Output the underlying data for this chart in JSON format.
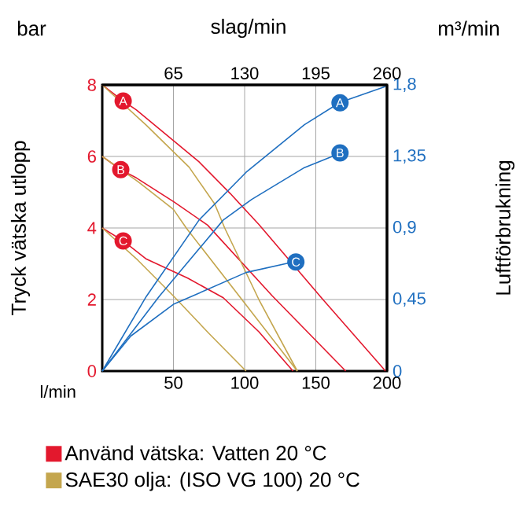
{
  "chart_data": {
    "type": "line",
    "xlabel": "l/min",
    "ylabel": "Tryck vätska utlopp",
    "y2label": "Luftförbrukning",
    "x2label": "slag/min",
    "xlim": [
      0,
      200
    ],
    "xticks": [
      50,
      100,
      150,
      200
    ],
    "ylim": [
      0,
      8
    ],
    "yticks": [
      0,
      2,
      4,
      6,
      8
    ],
    "y2lim": [
      0,
      1.8
    ],
    "y2ticks": [
      0,
      {
        "value": 0.45,
        "label": "0,45"
      },
      {
        "value": 0.9,
        "label": "0,9"
      },
      {
        "value": 1.35,
        "label": "1,35"
      },
      {
        "value": 1.8,
        "label": "1,8"
      }
    ],
    "x2lim": [
      0,
      260
    ],
    "x2ticks": [
      65,
      130,
      195,
      260
    ],
    "grid": true,
    "legend": "bottom",
    "annotations": [
      "bar",
      "m³/min",
      {
        "text": "A",
        "x": 14.7,
        "y": 7.55
      },
      {
        "text": "B",
        "x": 13,
        "y": 5.63
      },
      {
        "text": "C",
        "x": 14.7,
        "y": 3.64
      },
      {
        "text": "A",
        "x": 167,
        "y": 7.5
      },
      {
        "text": "B",
        "x": 167,
        "y": 6.1
      },
      {
        "text": "C",
        "x": 136,
        "y": 3.05
      }
    ],
    "series": [
      {
        "name": "Använd vätska: Vatten 20 °C",
        "color": "#e3182d",
        "x": [
          0,
          14.7,
          24,
          68,
          90,
          110,
          155,
          199
        ],
        "values": [
          8,
          7.55,
          7.3,
          5.85,
          4.96,
          4.1,
          2.0,
          0
        ]
      },
      {
        "color": "#e3182d",
        "x": [
          0,
          13,
          24,
          50,
          74,
          119.5,
          171
        ],
        "values": [
          6,
          5.63,
          5.4,
          4.74,
          4.08,
          2.1,
          0
        ]
      },
      {
        "color": "#e3182d",
        "x": [
          0,
          14.7,
          31,
          60,
          85,
          110,
          134
        ],
        "values": [
          4,
          3.64,
          3.13,
          2.6,
          2.05,
          1.1,
          0
        ]
      },
      {
        "name": "SAE30 olja: (ISO VG 100) 20 °C",
        "color": "#c4a64e",
        "x": [
          0,
          31,
          61,
          79,
          86,
          110,
          137
        ],
        "values": [
          8,
          6.87,
          5.7,
          4.67,
          4.0,
          2.0,
          0
        ]
      },
      {
        "color": "#c4a64e",
        "x": [
          0,
          25,
          50,
          59,
          100,
          137
        ],
        "values": [
          6,
          5.3,
          4.52,
          4.0,
          1.9,
          0
        ]
      },
      {
        "color": "#c4a64e",
        "x": [
          0,
          25,
          50,
          75,
          101
        ],
        "values": [
          4,
          3.1,
          2.1,
          1.05,
          0
        ]
      },
      {
        "color": "#1f6fc0",
        "axis": "y2",
        "x": [
          0,
          31,
          68,
          101,
          142,
          167,
          199
        ],
        "values": [
          0,
          0.47,
          0.95,
          1.25,
          1.55,
          1.69,
          1.79
        ]
      },
      {
        "color": "#1f6fc0",
        "axis": "y2",
        "x": [
          0,
          40,
          85,
          105,
          142,
          167
        ],
        "values": [
          0,
          0.47,
          0.95,
          1.08,
          1.28,
          1.37
        ]
      },
      {
        "color": "#1f6fc0",
        "axis": "y2",
        "x": [
          0,
          20,
          50,
          101,
          136
        ],
        "values": [
          0,
          0.22,
          0.42,
          0.62,
          0.69
        ]
      }
    ]
  }
}
